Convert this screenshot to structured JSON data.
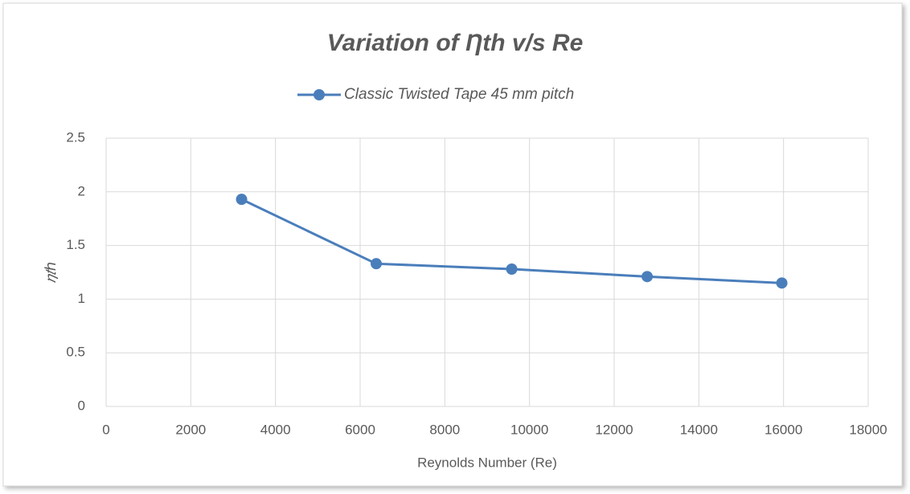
{
  "chart_data": {
    "type": "line",
    "title": "Variation of Ƞth v/s Re",
    "xlabel": "Reynolds Number (Re)",
    "ylabel": "𝜂𝑡ℎ",
    "x": [
      3200,
      6380,
      9580,
      12780,
      15960
    ],
    "series": [
      {
        "name": "Classic Twisted Tape 45 mm pitch",
        "color": "#4a7ebb",
        "values": [
          1.93,
          1.33,
          1.28,
          1.21,
          1.15
        ]
      }
    ],
    "xlim": [
      0,
      18000
    ],
    "xticks": [
      0,
      2000,
      4000,
      6000,
      8000,
      10000,
      12000,
      14000,
      16000,
      18000
    ],
    "ylim": [
      0,
      2.5
    ],
    "yticks": [
      0,
      0.5,
      1,
      1.5,
      2,
      2.5
    ],
    "grid": true,
    "legend": "top"
  }
}
